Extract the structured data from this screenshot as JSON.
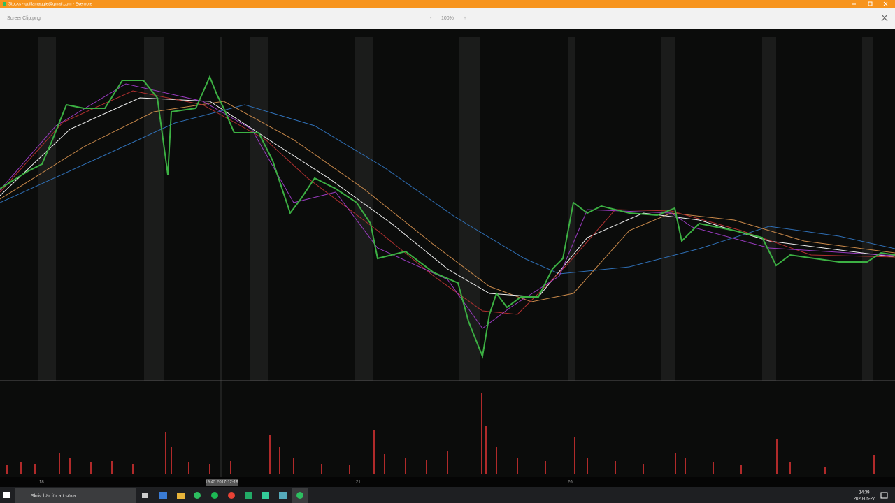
{
  "window": {
    "title": "Stocks - quillamaggie@gmail.com - Evernote"
  },
  "toolbar": {
    "filename": "ScreenClip.png",
    "zoom_out": "-",
    "zoom": "100%",
    "zoom_in": "+"
  },
  "chart_axis": {
    "label_18": "18",
    "cursor_label": "19:45 2017-12-19",
    "label_21": "21",
    "label_26": "26"
  },
  "taskbar": {
    "search": "Skriv här för att söka",
    "time": "14:39",
    "date": "2020-05-27"
  }
}
